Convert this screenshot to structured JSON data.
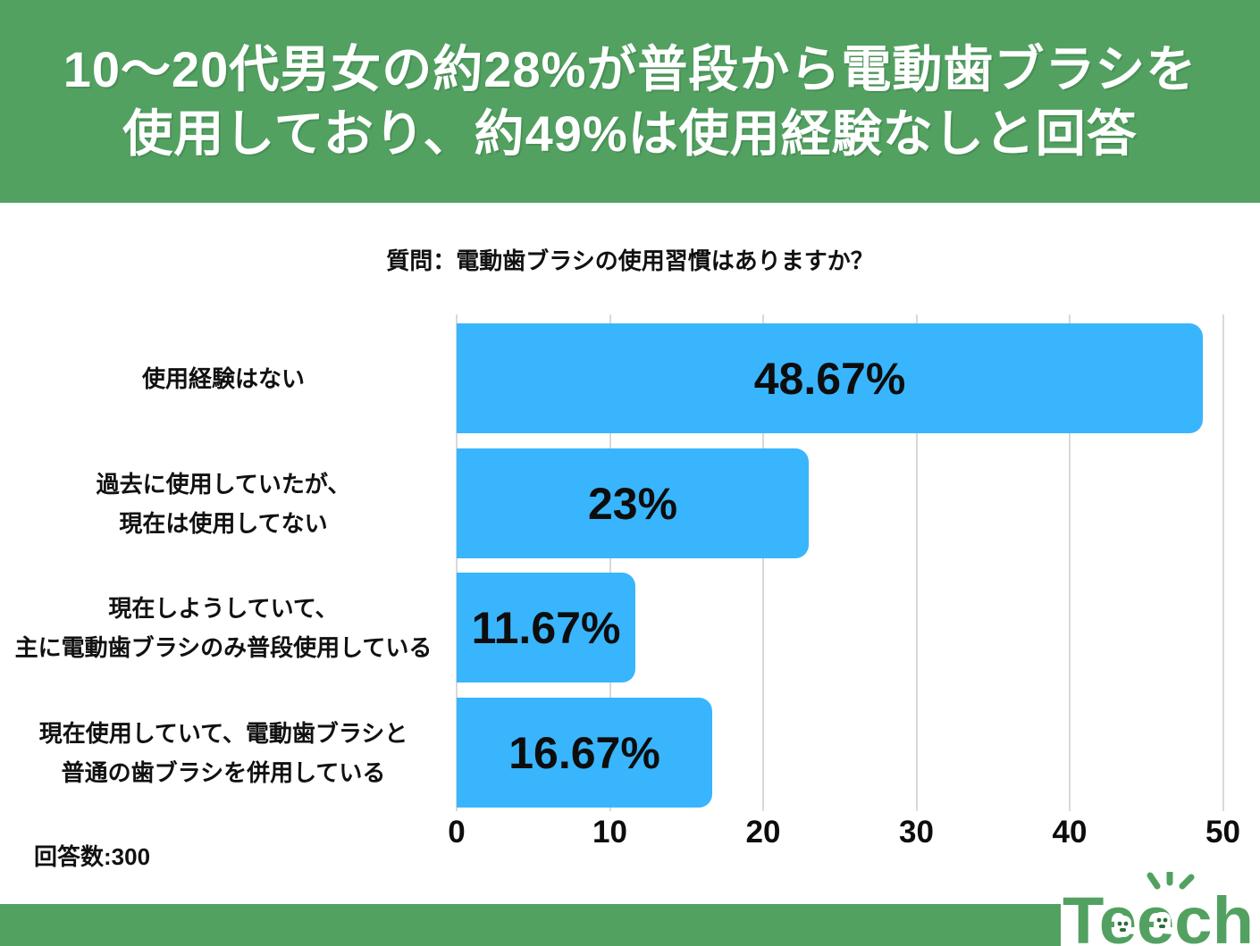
{
  "header": {
    "title_line1": "10〜20代男女の約28%が普段から電動歯ブラシを",
    "title_line2": "使用しており、約49%は使用経験なしと回答",
    "bg_color": "#52a161",
    "text_color": "#ffffff"
  },
  "question": "質問：電動歯ブラシの使用習慣はありますか？",
  "chart_data": {
    "type": "bar",
    "orientation": "horizontal",
    "title": "質問：電動歯ブラシの使用習慣はありますか？",
    "categories": [
      "使用経験はない",
      "過去に使用していたが、現在は使用してない",
      "現在しようしていて、主に電動歯ブラシのみ普段使用している",
      "現在使用していて、電動歯ブラシと普通の歯ブラシを併用している"
    ],
    "category_lines": [
      [
        "使用経験はない"
      ],
      [
        "過去に使用していたが、",
        "現在は使用してない"
      ],
      [
        "現在しようしていて、",
        "主に電動歯ブラシのみ普段使用している"
      ],
      [
        "現在使用していて、電動歯ブラシと",
        "普通の歯ブラシを併用している"
      ]
    ],
    "values": [
      48.67,
      23,
      11.67,
      16.67
    ],
    "value_labels": [
      "48.67%",
      "23%",
      "11.67%",
      "16.67%"
    ],
    "xlabel": "",
    "ylabel": "",
    "xlim": [
      0,
      50
    ],
    "xticks": [
      0,
      10,
      20,
      30,
      40,
      50
    ],
    "grid": true,
    "legend": false,
    "bar_color": "#38b5fd",
    "grid_color": "#d9d9d9"
  },
  "footnote": "回答数:300",
  "footer": {
    "logo_text": "Teech",
    "logo_color": "#52a161",
    "bar_color": "#52a161"
  }
}
